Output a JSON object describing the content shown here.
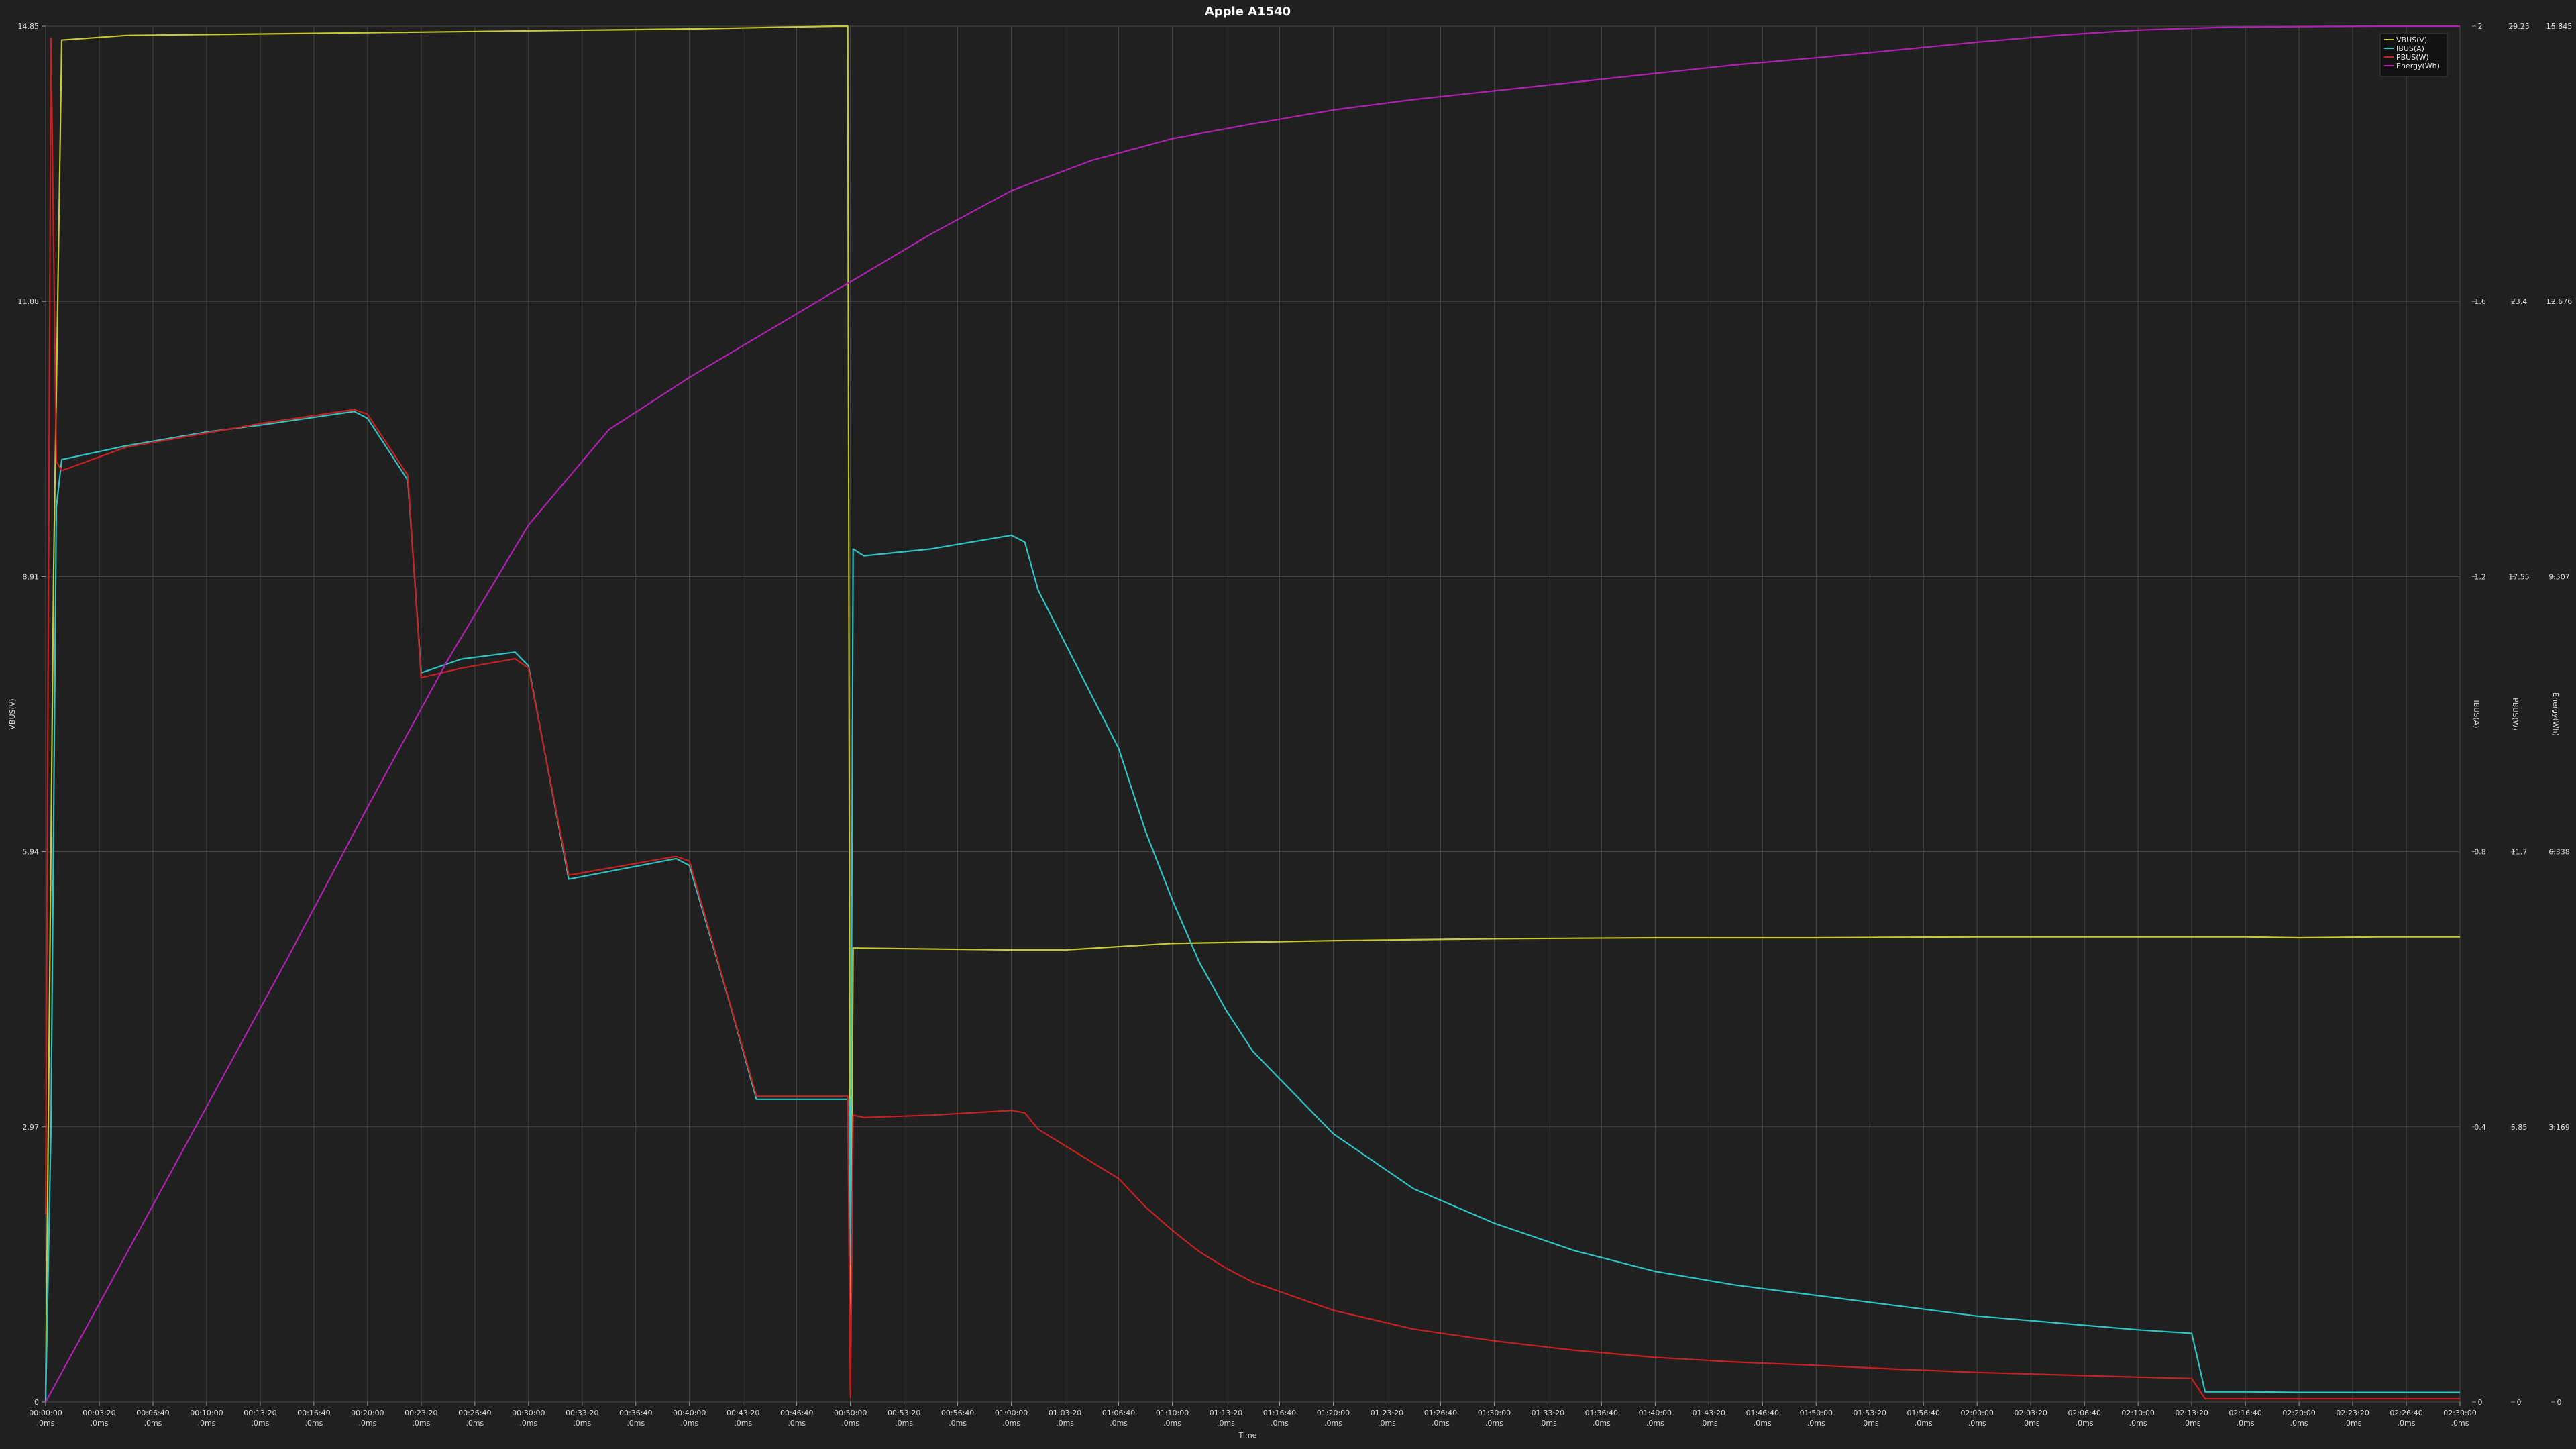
{
  "chart_data": {
    "type": "line",
    "title": "Apple A1540",
    "xlabel": "Time",
    "x_ticks": [
      "00:00:00",
      "00:03:20",
      "00:06:40",
      "00:10:00",
      "00:13:20",
      "00:16:40",
      "00:20:00",
      "00:23:20",
      "00:26:40",
      "00:30:00",
      "00:33:20",
      "00:36:40",
      "00:40:00",
      "00:43:20",
      "00:46:40",
      "00:50:00",
      "00:53:20",
      "00:56:40",
      "01:00:00",
      "01:03:20",
      "01:06:40",
      "01:10:00",
      "01:13:20",
      "01:16:40",
      "01:20:00",
      "01:23:20",
      "01:26:40",
      "01:30:00",
      "01:33:20",
      "01:36:40",
      "01:40:00",
      "01:43:20",
      "01:46:40",
      "01:50:00",
      "01:53:20",
      "01:56:40",
      "02:00:00",
      "02:03:20",
      "02:06:40",
      "02:10:00",
      "02:13:20",
      "02:16:40",
      "02:20:00",
      "02:23:20",
      "02:26:40",
      "02:30:00"
    ],
    "x_tick_sublabel": ".0ms",
    "xlim_seconds": [
      0,
      9000
    ],
    "grid": true,
    "legend_position": "top-right",
    "axes": [
      {
        "id": "v",
        "label": "VBUS(V)",
        "side": "left",
        "ticks": [
          "0",
          "2.97",
          "5.94",
          "8.91",
          "11.88",
          "14.85"
        ],
        "range": [
          0,
          14.85
        ]
      },
      {
        "id": "a",
        "label": "IBUS(A)",
        "side": "right",
        "ticks": [
          "0",
          "0.4",
          "0.8",
          "1.2",
          "1.6",
          "2"
        ],
        "range": [
          0,
          2
        ]
      },
      {
        "id": "w",
        "label": "PBUS(W)",
        "side": "right",
        "ticks": [
          "0",
          "5.85",
          "11.7",
          "17.55",
          "23.4",
          "29.25"
        ],
        "range": [
          0,
          29.25
        ]
      },
      {
        "id": "e",
        "label": "Energy(Wh)",
        "side": "right",
        "ticks": [
          "0",
          "3.169",
          "6.338",
          "9.507",
          "12.676",
          "15.845"
        ],
        "range": [
          0,
          15.845
        ]
      }
    ],
    "series": [
      {
        "name": "VBUS(V)",
        "color": "#c8c832",
        "axis": "v",
        "x": [
          0,
          30,
          60,
          300,
          1200,
          1800,
          2400,
          2950,
          2990,
          3000,
          3010,
          3600,
          3800,
          4200,
          4800,
          5400,
          6000,
          6600,
          7200,
          7800,
          8200,
          8400,
          8700,
          9000
        ],
        "y": [
          0,
          9.0,
          14.7,
          14.75,
          14.78,
          14.8,
          14.82,
          14.85,
          14.85,
          0.4,
          4.9,
          4.88,
          4.88,
          4.95,
          4.98,
          5.0,
          5.01,
          5.01,
          5.02,
          5.02,
          5.02,
          5.01,
          5.02,
          5.02
        ]
      },
      {
        "name": "IBUS(A)",
        "color": "#2ec4c4",
        "axis": "a",
        "x": [
          0,
          20,
          40,
          60,
          300,
          600,
          800,
          1150,
          1200,
          1350,
          1400,
          1550,
          1750,
          1800,
          1950,
          2350,
          2400,
          2550,
          2650,
          2950,
          2995,
          3000,
          3010,
          3050,
          3300,
          3600,
          3650,
          3700,
          4000,
          4100,
          4200,
          4300,
          4400,
          4500,
          4800,
          5100,
          5400,
          5700,
          6000,
          6300,
          6600,
          6900,
          7200,
          7500,
          7800,
          8000,
          8050,
          8200,
          8400,
          8600,
          8800,
          9000
        ],
        "y": [
          0,
          0.4,
          1.3,
          1.37,
          1.39,
          1.41,
          1.42,
          1.44,
          1.43,
          1.34,
          1.06,
          1.08,
          1.09,
          1.07,
          0.76,
          0.79,
          0.78,
          0.58,
          0.44,
          0.44,
          0.44,
          0.2,
          1.24,
          1.23,
          1.24,
          1.26,
          1.25,
          1.18,
          0.95,
          0.83,
          0.73,
          0.64,
          0.57,
          0.51,
          0.39,
          0.31,
          0.26,
          0.22,
          0.19,
          0.17,
          0.155,
          0.14,
          0.125,
          0.115,
          0.105,
          0.1,
          0.015,
          0.015,
          0.014,
          0.014,
          0.014,
          0.014
        ]
      },
      {
        "name": "PBUS(W)",
        "color": "#c82020",
        "axis": "w",
        "x": [
          0,
          20,
          40,
          60,
          300,
          600,
          800,
          1150,
          1200,
          1350,
          1400,
          1550,
          1750,
          1800,
          1950,
          2350,
          2400,
          2550,
          2650,
          2950,
          2990,
          3000,
          3010,
          3050,
          3300,
          3600,
          3650,
          3700,
          4000,
          4100,
          4200,
          4300,
          4400,
          4500,
          4800,
          5100,
          5400,
          5700,
          6000,
          6300,
          6600,
          6900,
          7200,
          7500,
          7800,
          8000,
          8050,
          8200,
          8400,
          8600,
          8800,
          9000
        ],
        "y": [
          4.0,
          29.0,
          20.0,
          19.8,
          20.3,
          20.6,
          20.8,
          21.1,
          21.0,
          19.7,
          15.4,
          15.6,
          15.8,
          15.6,
          11.2,
          11.6,
          11.5,
          8.5,
          6.5,
          6.5,
          6.5,
          0.1,
          6.1,
          6.05,
          6.1,
          6.2,
          6.15,
          5.8,
          4.75,
          4.15,
          3.65,
          3.2,
          2.85,
          2.55,
          1.95,
          1.55,
          1.3,
          1.1,
          0.95,
          0.85,
          0.78,
          0.7,
          0.63,
          0.58,
          0.53,
          0.5,
          0.07,
          0.07,
          0.07,
          0.07,
          0.07,
          0.07
        ]
      },
      {
        "name": "Energy(Wh)",
        "color": "#b020b0",
        "axis": "e",
        "x": [
          0,
          300,
          600,
          900,
          1200,
          1500,
          1800,
          2100,
          2400,
          2700,
          3000,
          3300,
          3600,
          3900,
          4200,
          4500,
          4800,
          5100,
          5400,
          5700,
          6000,
          6300,
          6600,
          6900,
          7200,
          7500,
          7800,
          8100,
          8400,
          8700,
          9000
        ],
        "y": [
          0,
          1.7,
          3.4,
          5.1,
          6.85,
          8.55,
          10.1,
          11.2,
          11.8,
          12.35,
          12.9,
          13.45,
          13.95,
          14.3,
          14.55,
          14.72,
          14.88,
          15.0,
          15.1,
          15.2,
          15.3,
          15.4,
          15.48,
          15.57,
          15.66,
          15.74,
          15.8,
          15.83,
          15.84,
          15.845,
          15.845
        ]
      }
    ]
  }
}
